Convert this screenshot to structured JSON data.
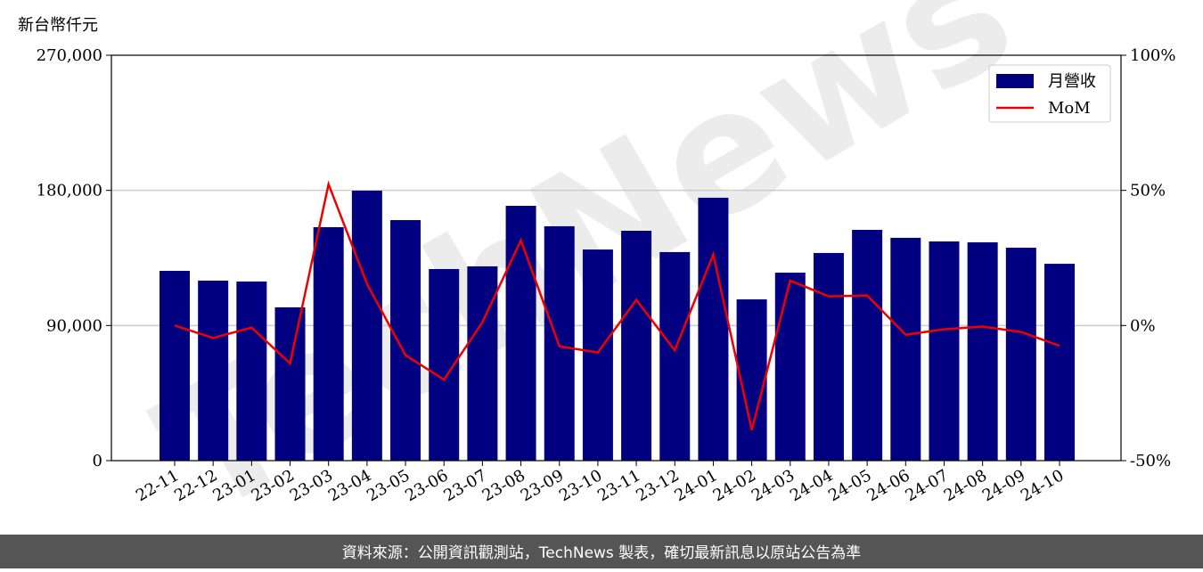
{
  "chart_data": {
    "type": "bar_line",
    "y_label": "新台幣仟元",
    "watermark": "TechNews",
    "footer": "資料來源：公開資訊觀測站，TechNews 製表，確切最新訊息以原站公告為準",
    "categories": [
      "22-11",
      "22-12",
      "23-01",
      "23-02",
      "23-03",
      "23-04",
      "23-05",
      "23-06",
      "23-07",
      "23-08",
      "23-09",
      "23-10",
      "23-11",
      "23-12",
      "24-01",
      "24-02",
      "24-03",
      "24-04",
      "24-05",
      "24-06",
      "24-07",
      "24-08",
      "24-09",
      "24-10"
    ],
    "series": [
      {
        "name": "月營收",
        "type": "bar",
        "color": "#000080",
        "values": [
          126400,
          119900,
          119300,
          102100,
          155500,
          179800,
          160200,
          127600,
          129400,
          169700,
          156100,
          140600,
          153100,
          138900,
          175100,
          107400,
          125200,
          138300,
          153700,
          148400,
          146000,
          145400,
          141800,
          131100
        ]
      },
      {
        "name": "MoM",
        "type": "line",
        "axis": "y2",
        "color": "#ee0000",
        "values": [
          0,
          -4.6,
          -0.8,
          -14,
          52.3,
          15.4,
          -11,
          -20,
          1.2,
          31.5,
          -7.7,
          -10,
          9.5,
          -9.2,
          26.3,
          -38.7,
          16.6,
          10.8,
          11.1,
          -3.4,
          -1.4,
          -0.4,
          -2.4,
          -7.5
        ]
      }
    ],
    "ylim": [
      0,
      270000
    ],
    "yticks": [
      0,
      {
        "value": 90000,
        "label": "90,000"
      },
      {
        "value": 180000,
        "label": "180,000"
      },
      {
        "value": 270000,
        "label": "270,000"
      }
    ],
    "y2lim": [
      -50,
      100
    ],
    "y2ticks": [
      {
        "value": -50,
        "label": "-50%"
      },
      {
        "value": 0,
        "label": "0%"
      },
      {
        "value": 50,
        "label": "50%"
      },
      {
        "value": 100,
        "label": "100%"
      }
    ],
    "grid": true,
    "legend": "upper right"
  }
}
